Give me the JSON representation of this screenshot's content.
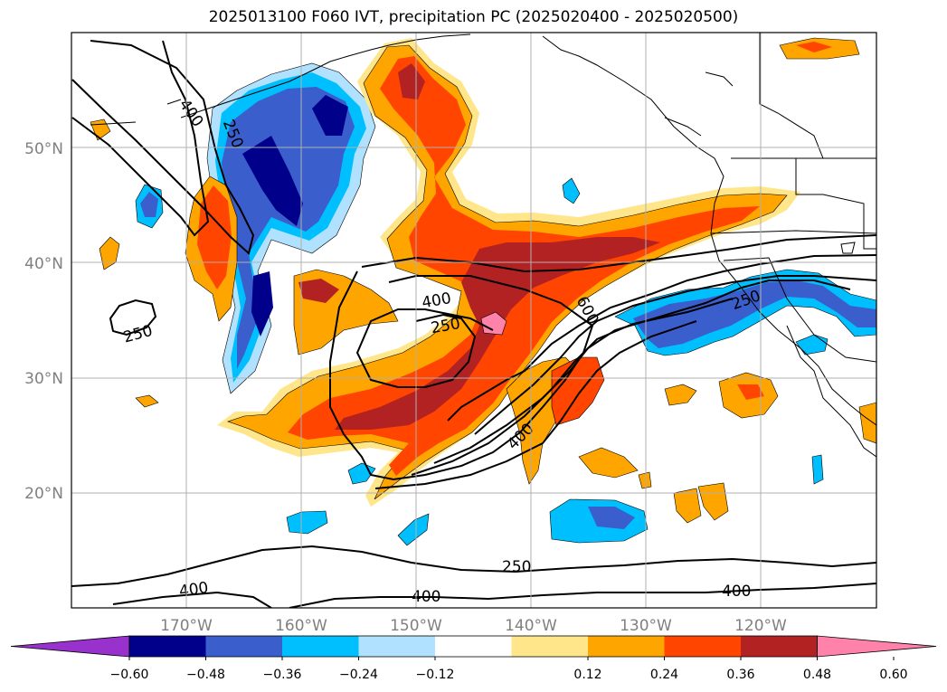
{
  "title": "2025013100 F060 IVT, precipitation PC (2025020400 - 2025020500)",
  "map": {
    "lon_labels": [
      "170°W",
      "160°W",
      "150°W",
      "140°W",
      "130°W",
      "120°W"
    ],
    "lat_labels": [
      "50°N",
      "40°N",
      "30°N",
      "20°N"
    ],
    "contour_labels": [
      "400",
      "250",
      "400",
      "250",
      "250",
      "600",
      "400",
      "250",
      "400",
      "250",
      "400",
      "400"
    ]
  },
  "colorbar": {
    "colors": [
      "#9932cc",
      "#00008b",
      "#3a5fcd",
      "#00bfff",
      "#b0e2ff",
      "#ffffff",
      "#ffe68a",
      "#ffa500",
      "#ff4500",
      "#b22222",
      "#ff82ab"
    ],
    "tick_labels": [
      "−0.60",
      "−0.48",
      "−0.36",
      "−0.24",
      "−0.12",
      "0.12",
      "0.24",
      "0.36",
      "0.48",
      "0.60"
    ]
  }
}
